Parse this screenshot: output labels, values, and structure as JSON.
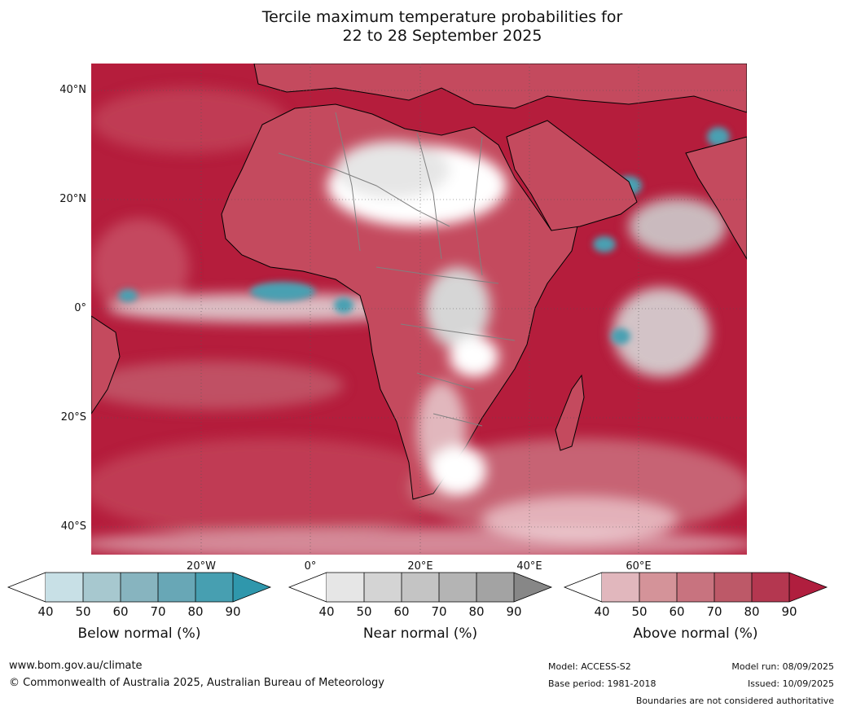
{
  "title": {
    "line1": "Tercile maximum temperature probabilities for",
    "line2": "22 to 28 September 2025"
  },
  "map": {
    "lat_labels": [
      "40°N",
      "20°N",
      "0°",
      "20°S",
      "40°S"
    ],
    "lon_labels": [
      "20°W",
      "0°",
      "20°E",
      "40°E",
      "60°E"
    ],
    "colors": {
      "ocean_above": "#b51d3c",
      "land_above": "#c44a5e",
      "near_normal": "#d6d6d6",
      "below_normal": "#4aa0b2",
      "coastline": "#000000",
      "boundary": "#808080"
    }
  },
  "legends": {
    "below": {
      "label": "Below normal (%)",
      "ticks": [
        "40",
        "50",
        "60",
        "70",
        "80",
        "90"
      ],
      "colors": [
        "#ffffff",
        "#c8e0e6",
        "#a7c8cf",
        "#87b4bf",
        "#68a7b6",
        "#479fb1",
        "#2f97ac"
      ]
    },
    "near": {
      "label": "Near normal (%)",
      "ticks": [
        "40",
        "50",
        "60",
        "70",
        "80",
        "90"
      ],
      "colors": [
        "#ffffff",
        "#e6e6e6",
        "#d4d4d4",
        "#c4c4c4",
        "#b4b4b4",
        "#a3a3a3",
        "#878787"
      ]
    },
    "above": {
      "label": "Above normal (%)",
      "ticks": [
        "40",
        "50",
        "60",
        "70",
        "80",
        "90"
      ],
      "colors": [
        "#ffffff",
        "#e1b7bd",
        "#d49399",
        "#c8737f",
        "#bd5968",
        "#b43750",
        "#b01e3e"
      ]
    }
  },
  "footer": {
    "url": "www.bom.gov.au/climate",
    "copyright": "© Commonwealth of Australia 2025, Australian Bureau of Meteorology",
    "model": "Model: ACCESS-S2",
    "base_period": "Base period: 1981-2018",
    "model_run": "Model run: 08/09/2025",
    "issued": "Issued: 10/09/2025",
    "disclaimer": "Boundaries are not considered authoritative"
  }
}
